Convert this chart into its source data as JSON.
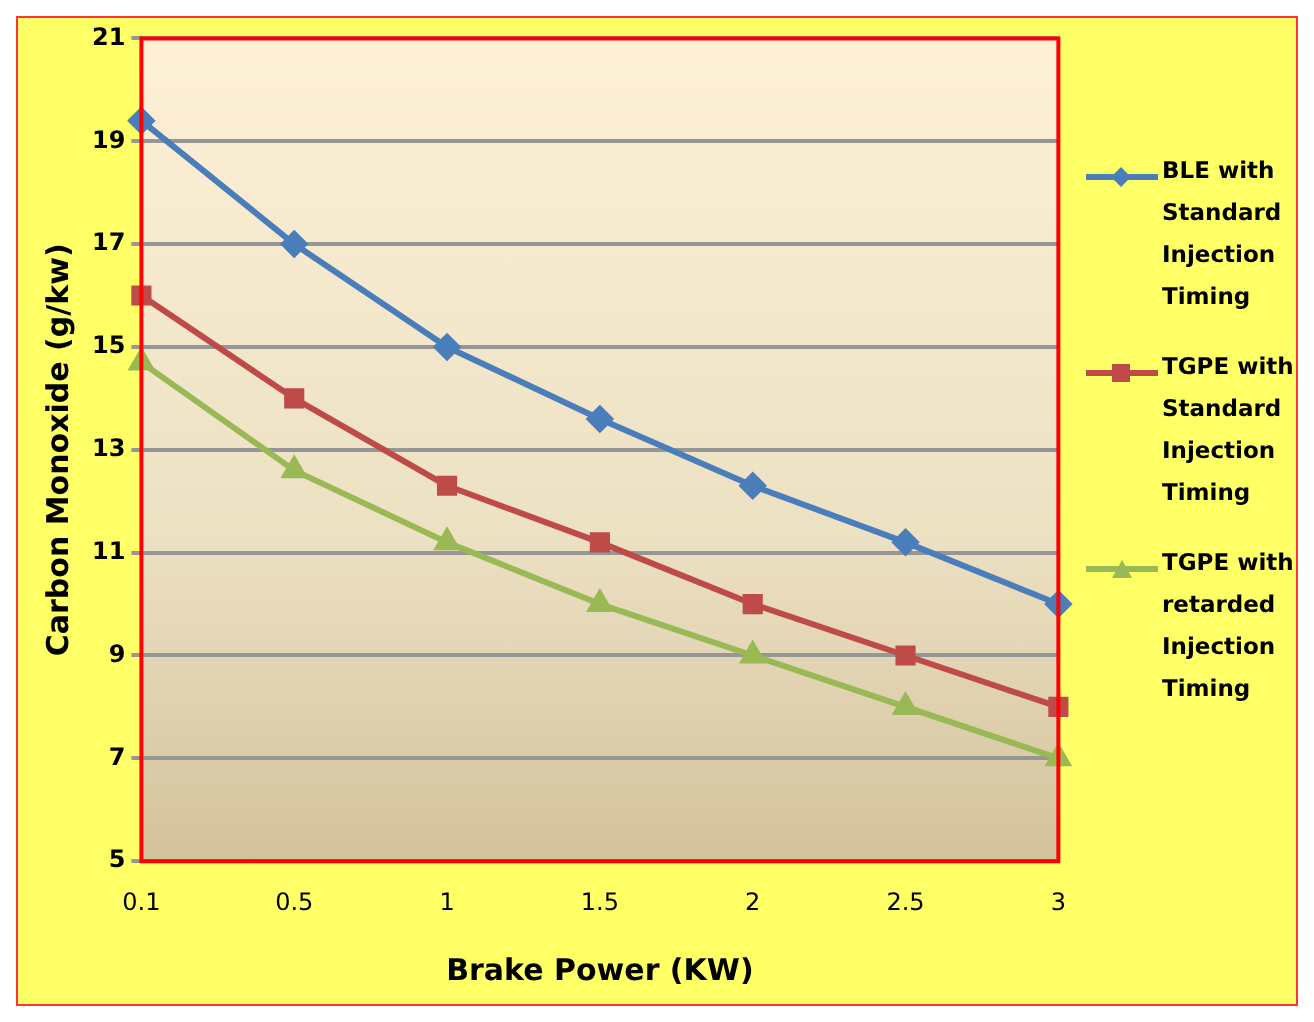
{
  "chart_data": {
    "type": "line",
    "xlabel": "Brake Power (KW)",
    "ylabel": "Carbon Monoxide (g/kw)",
    "categories": [
      "0.1",
      "0.5",
      "1",
      "1.5",
      "2",
      "2.5",
      "3"
    ],
    "ylim": [
      5,
      21
    ],
    "yticks": [
      5,
      7,
      9,
      11,
      13,
      15,
      17,
      19,
      21
    ],
    "grid": "y",
    "legend": "right",
    "series": [
      {
        "name": "BLE with Standard Injection Timing",
        "color": "#4a7ebb",
        "marker": "diamond",
        "values": [
          19.4,
          17,
          15,
          13.6,
          12.3,
          11.2,
          10
        ]
      },
      {
        "name": "TGPE with Standard Injection Timing",
        "color": "#be4b48",
        "marker": "square",
        "values": [
          16,
          14,
          12.3,
          11.2,
          10,
          9,
          8
        ]
      },
      {
        "name": "TGPE with retarded Injection Timing",
        "color": "#98b954",
        "marker": "triangle",
        "values": [
          14.7,
          12.6,
          11.2,
          10,
          9,
          8,
          7
        ]
      }
    ]
  }
}
